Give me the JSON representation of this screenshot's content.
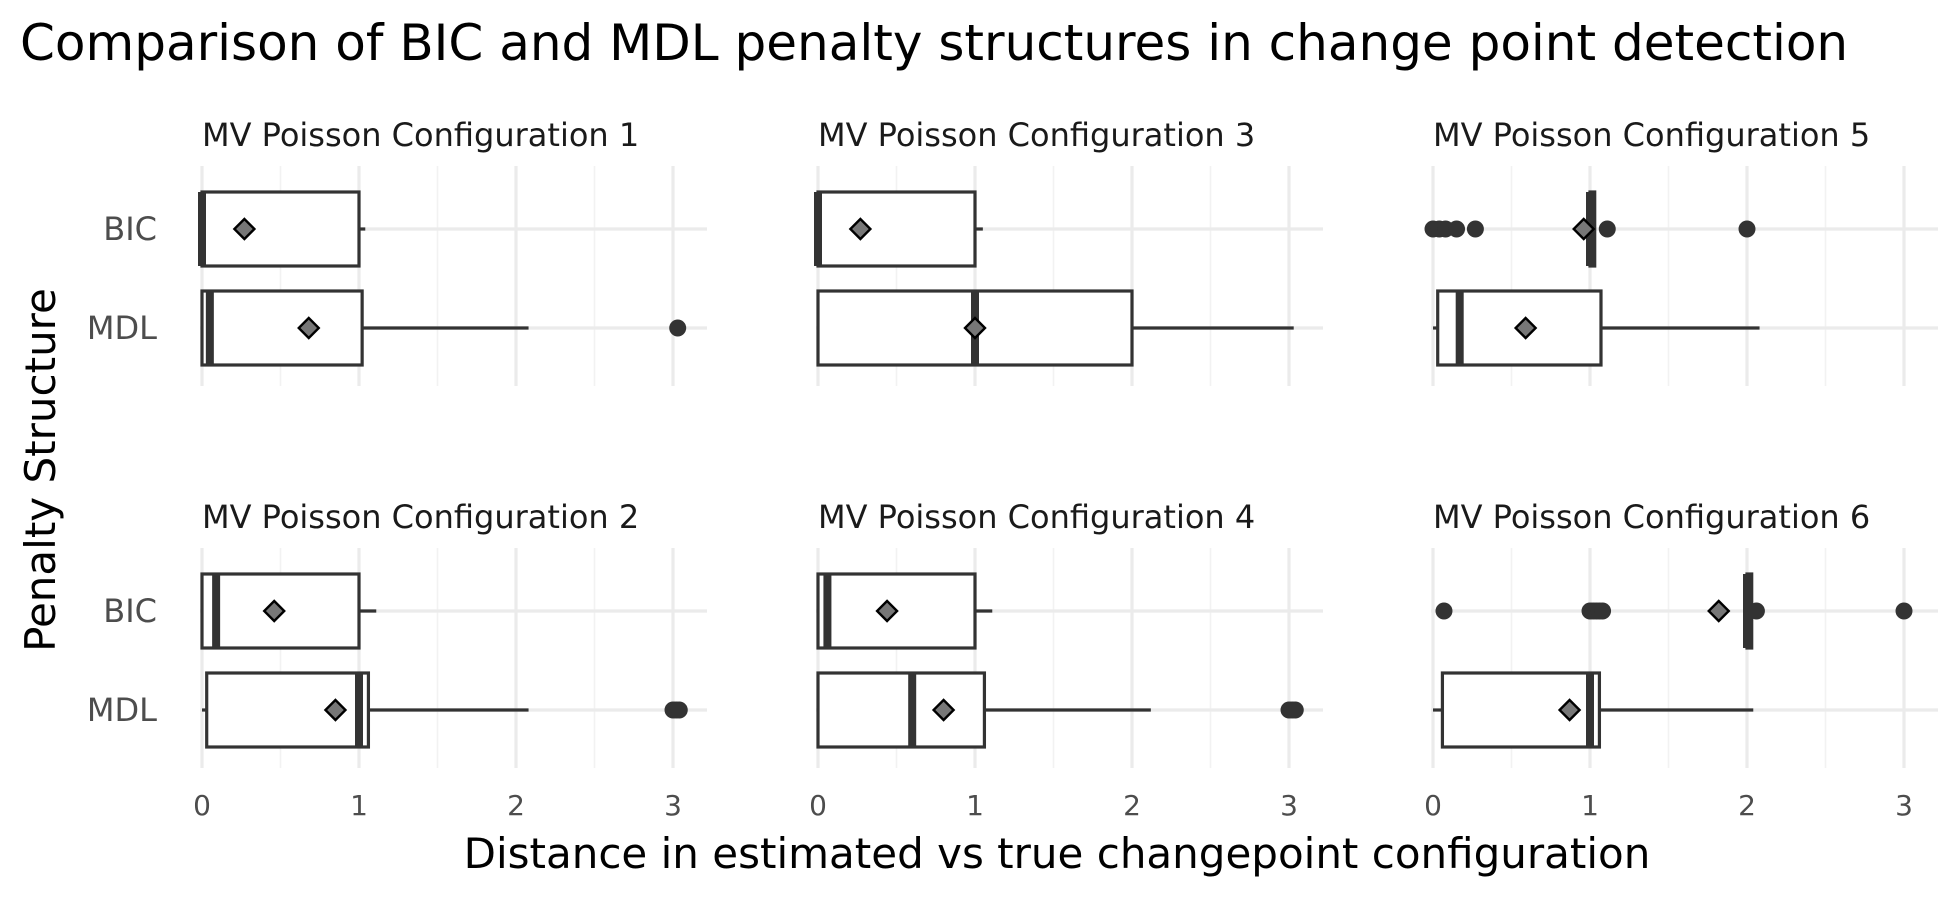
{
  "chart_data": {
    "type": "boxplot",
    "title": "Comparison of BIC and MDL penalty structures in change point detection",
    "xlabel": "Distance in estimated vs true changepoint configuration",
    "ylabel": "Penalty Structure",
    "xlim": [
      0,
      3
    ],
    "x_ticks": [
      "0",
      "1",
      "2",
      "3"
    ],
    "grid": true,
    "categories": [
      "BIC",
      "MDL"
    ],
    "panels": [
      {
        "name": "MV Poisson Configuration 1",
        "series": [
          {
            "group": "BIC",
            "q1": 0.0,
            "median": 0.0,
            "q3": 1.0,
            "whisker_low": 0.0,
            "whisker_high": 1.04,
            "mean": 0.27,
            "outliers": []
          },
          {
            "group": "MDL",
            "q1": 0.0,
            "median": 0.05,
            "q3": 1.02,
            "whisker_low": 0.0,
            "whisker_high": 2.08,
            "mean": 0.68,
            "outliers": [
              3.03
            ]
          }
        ]
      },
      {
        "name": "MV Poisson Configuration 3",
        "series": [
          {
            "group": "BIC",
            "q1": 0.0,
            "median": 0.0,
            "q3": 1.0,
            "whisker_low": 0.0,
            "whisker_high": 1.05,
            "mean": 0.27,
            "outliers": []
          },
          {
            "group": "MDL",
            "q1": 0.0,
            "median": 1.0,
            "q3": 2.0,
            "whisker_low": 0.0,
            "whisker_high": 3.03,
            "mean": 1.0,
            "outliers": []
          }
        ]
      },
      {
        "name": "MV Poisson Configuration 5",
        "series": [
          {
            "group": "BIC",
            "q1": 1.0,
            "median": 1.0,
            "q3": 1.03,
            "whisker_low": 1.0,
            "whisker_high": 1.03,
            "mean": 0.96,
            "outliers": [
              0.0,
              0.04,
              0.08,
              0.15,
              0.27,
              1.11,
              2.0
            ]
          },
          {
            "group": "MDL",
            "q1": 0.03,
            "median": 0.17,
            "q3": 1.07,
            "whisker_low": 0.0,
            "whisker_high": 2.08,
            "mean": 0.59,
            "outliers": []
          }
        ]
      },
      {
        "name": "MV Poisson Configuration 2",
        "series": [
          {
            "group": "BIC",
            "q1": 0.0,
            "median": 0.09,
            "q3": 1.0,
            "whisker_low": 0.0,
            "whisker_high": 1.11,
            "mean": 0.46,
            "outliers": []
          },
          {
            "group": "MDL",
            "q1": 0.03,
            "median": 1.0,
            "q3": 1.06,
            "whisker_low": 0.0,
            "whisker_high": 2.08,
            "mean": 0.85,
            "outliers": [
              3.0,
              3.02,
              3.04
            ]
          }
        ]
      },
      {
        "name": "MV Poisson Configuration 4",
        "series": [
          {
            "group": "BIC",
            "q1": 0.0,
            "median": 0.06,
            "q3": 1.0,
            "whisker_low": 0.0,
            "whisker_high": 1.11,
            "mean": 0.44,
            "outliers": []
          },
          {
            "group": "MDL",
            "q1": 0.0,
            "median": 0.6,
            "q3": 1.06,
            "whisker_low": 0.0,
            "whisker_high": 2.12,
            "mean": 0.8,
            "outliers": [
              3.0,
              3.02,
              3.04
            ]
          }
        ]
      },
      {
        "name": "MV Poisson Configuration 6",
        "series": [
          {
            "group": "BIC",
            "q1": 2.0,
            "median": 2.0,
            "q3": 2.03,
            "whisker_low": 2.0,
            "whisker_high": 2.03,
            "mean": 1.82,
            "outliers": [
              0.07,
              1.0,
              1.02,
              1.04,
              1.06,
              1.08,
              2.06,
              3.0
            ]
          },
          {
            "group": "MDL",
            "q1": 0.06,
            "median": 1.0,
            "q3": 1.06,
            "whisker_low": 0.0,
            "whisker_high": 2.04,
            "mean": 0.87,
            "outliers": []
          }
        ]
      }
    ]
  }
}
